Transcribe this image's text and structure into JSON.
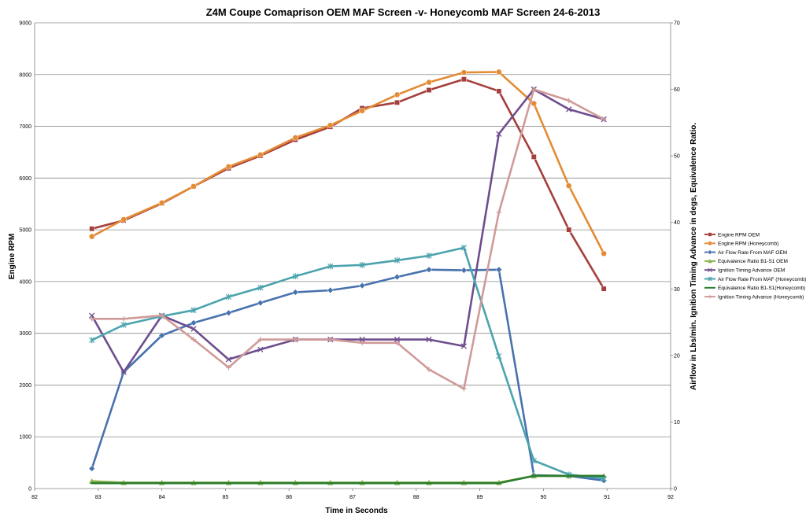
{
  "chart_data": {
    "type": "line",
    "title": "Z4M Coupe  Comaprison OEM MAF Screen -v- Honeycomb MAF Screen  24-6-2013",
    "xlabel": "Time in Seconds",
    "ylabel": "Engine RPM",
    "y2label": "Airflow  in Lbs/min. Ignition Timing Advance in degs, Equivalence Ratio.",
    "xlim": [
      82,
      92
    ],
    "ylim": [
      0,
      9000
    ],
    "y2lim": [
      0,
      70
    ],
    "xticks": [
      "82",
      "83",
      "84",
      "85",
      "86",
      "87",
      "88",
      "89",
      "90",
      "91",
      "92"
    ],
    "yticks": [
      "0",
      "1000",
      "2000",
      "3000",
      "4000",
      "5000",
      "6000",
      "7000",
      "8000",
      "9000"
    ],
    "y2ticks": [
      "0",
      "10",
      "20",
      "30",
      "40",
      "50",
      "60",
      "70"
    ],
    "grid": "horizontal",
    "legend_position": "right",
    "series": [
      {
        "name": "Engine RPM OEM",
        "axis": "left",
        "color": "#a43f3c",
        "marker": "square",
        "x": [
          82.9,
          83.4,
          84.0,
          84.5,
          85.05,
          85.55,
          86.1,
          86.65,
          87.15,
          87.7,
          88.2,
          88.75,
          89.3,
          89.85,
          90.4,
          90.95
        ],
        "y": [
          5020,
          5180,
          5510,
          5840,
          6190,
          6430,
          6740,
          6990,
          7350,
          7460,
          7700,
          7910,
          7680,
          6410,
          5000,
          3860
        ]
      },
      {
        "name": "Engine RPM (Honeycomb)",
        "axis": "left",
        "color": "#e38b35",
        "marker": "circle",
        "x": [
          82.9,
          83.4,
          84.0,
          84.5,
          85.05,
          85.55,
          86.1,
          86.65,
          87.15,
          87.7,
          88.2,
          88.75,
          89.3,
          89.85,
          90.4,
          90.95
        ],
        "y": [
          4870,
          5200,
          5520,
          5840,
          6220,
          6450,
          6780,
          7020,
          7300,
          7610,
          7850,
          8040,
          8050,
          7440,
          5850,
          4540
        ]
      },
      {
        "name": "Air Flow Rate From MAF OEM",
        "axis": "right",
        "color": "#4872ae",
        "marker": "diamond",
        "x": [
          82.9,
          83.4,
          84.0,
          84.5,
          85.05,
          85.55,
          86.1,
          86.65,
          87.15,
          87.7,
          88.2,
          88.75,
          89.3,
          89.85,
          90.4,
          90.95
        ],
        "y": [
          3.0,
          17.5,
          23.0,
          24.9,
          26.4,
          27.9,
          29.5,
          29.8,
          30.5,
          31.8,
          32.9,
          32.8,
          32.9,
          2.0,
          1.9,
          1.2
        ]
      },
      {
        "name": "Equivalence Ratio B1-S1 OEM",
        "axis": "right",
        "color": "#8bb24c",
        "marker": "triangle",
        "x": [
          82.9,
          83.4,
          84.0,
          84.5,
          85.05,
          85.55,
          86.1,
          86.65,
          87.15,
          87.7,
          88.2,
          88.75,
          89.3,
          89.85,
          90.4,
          90.95
        ],
        "y": [
          1.1,
          0.9,
          0.9,
          0.9,
          0.9,
          0.9,
          0.9,
          0.9,
          0.9,
          0.9,
          0.9,
          0.9,
          0.9,
          1.9,
          1.9,
          1.9
        ]
      },
      {
        "name": "Ignition Timing Advance OEM",
        "axis": "right",
        "color": "#6e4e8e",
        "marker": "x",
        "x": [
          82.9,
          83.4,
          84.0,
          84.5,
          85.05,
          85.55,
          86.1,
          86.65,
          87.15,
          87.7,
          88.2,
          88.75,
          89.3,
          89.85,
          90.4,
          90.95
        ],
        "y": [
          26.0,
          17.5,
          26.0,
          24.0,
          19.4,
          20.9,
          22.4,
          22.4,
          22.4,
          22.4,
          22.4,
          21.4,
          53.3,
          60.0,
          57.0,
          55.5
        ]
      },
      {
        "name": "Air Flow Rate From MAF (Honeycomb)",
        "axis": "right",
        "color": "#4ba3ad",
        "marker": "star",
        "x": [
          82.9,
          83.4,
          84.0,
          84.5,
          85.05,
          85.55,
          86.1,
          86.65,
          87.15,
          87.7,
          88.2,
          88.75,
          89.3,
          89.85,
          90.4,
          90.95
        ],
        "y": [
          22.3,
          24.6,
          25.9,
          26.8,
          28.8,
          30.2,
          31.9,
          33.4,
          33.6,
          34.3,
          35.0,
          36.2,
          19.9,
          4.2,
          2.1,
          1.5
        ]
      },
      {
        "name": "Equivalence Ratio B1-S1(Honeycomb)",
        "axis": "right",
        "color": "#2a7d2e",
        "marker": "none",
        "x": [
          82.9,
          83.4,
          84.0,
          84.5,
          85.05,
          85.55,
          86.1,
          86.65,
          87.15,
          87.7,
          88.2,
          88.75,
          89.3,
          89.85,
          90.4,
          90.95
        ],
        "y": [
          0.8,
          0.8,
          0.8,
          0.8,
          0.8,
          0.8,
          0.8,
          0.8,
          0.8,
          0.8,
          0.8,
          0.8,
          0.8,
          1.9,
          1.9,
          1.9
        ]
      },
      {
        "name": "Ignition Timing Advance (Honeycomb)",
        "axis": "right",
        "color": "#d09a98",
        "marker": "plus",
        "x": [
          82.9,
          83.4,
          84.0,
          84.5,
          85.05,
          85.55,
          86.1,
          86.65,
          87.15,
          87.7,
          88.2,
          88.75,
          89.3,
          89.85,
          90.4,
          90.95
        ],
        "y": [
          25.5,
          25.5,
          26.0,
          22.4,
          18.2,
          22.4,
          22.4,
          22.4,
          21.9,
          21.9,
          17.9,
          15.0,
          41.5,
          60.0,
          58.3,
          55.5
        ]
      }
    ]
  }
}
